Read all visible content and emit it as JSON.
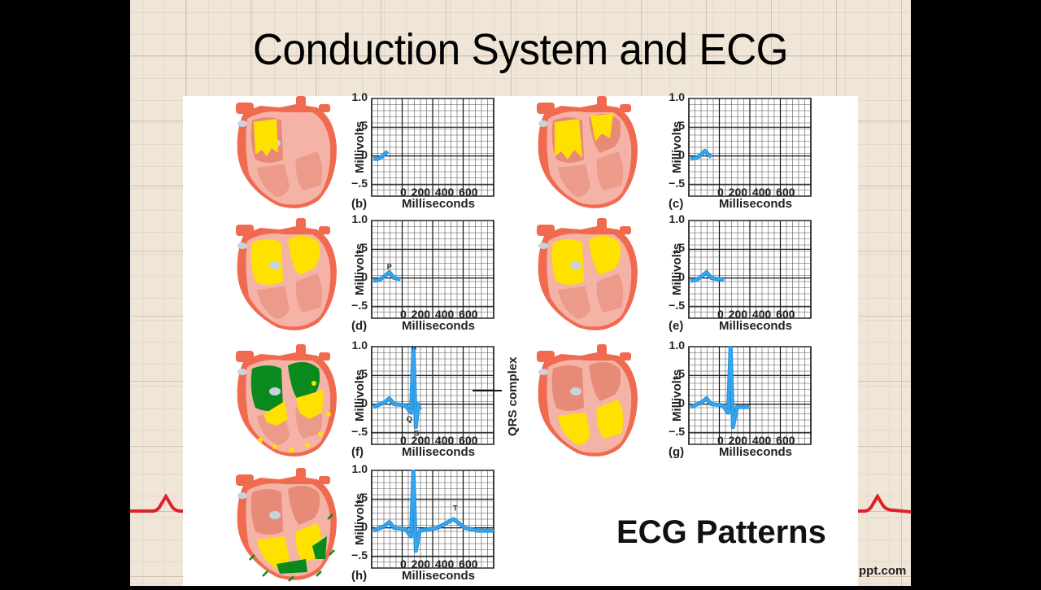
{
  "slide": {
    "title": "Conduction System and ECG",
    "caption": "ECG Patterns",
    "watermark": "ppt.com",
    "qrs_label": "QRS complex",
    "colors": {
      "background_grid": "#efe6d8",
      "ecg_trace": "#1e90e0",
      "decor_ecg": "#e0202a",
      "depolarized_yellow": "#ffe100",
      "repolarized_green": "#0a8a1e",
      "heart_outer": "#f06a50",
      "heart_inner": "#f4b3a6"
    }
  },
  "axes": {
    "ylabel": "Millivolts",
    "xlabel": "Milliseconds",
    "yticks": [
      "1.0",
      ".5",
      "0",
      "−.5"
    ],
    "xticks": "0  200 400 600"
  },
  "panels": [
    {
      "id": "b",
      "label": "(b)",
      "peak_labels": []
    },
    {
      "id": "c",
      "label": "(c)",
      "peak_labels": []
    },
    {
      "id": "d",
      "label": "(d)",
      "peak_labels": [
        "P"
      ]
    },
    {
      "id": "e",
      "label": "(e)",
      "peak_labels": []
    },
    {
      "id": "f",
      "label": "(f)",
      "peak_labels": [
        "R",
        "Q",
        "S"
      ]
    },
    {
      "id": "g",
      "label": "(g)",
      "peak_labels": []
    },
    {
      "id": "h",
      "label": "(h)",
      "peak_labels": [
        "T"
      ]
    }
  ],
  "chart_data": [
    {
      "type": "line",
      "panel": "(b)",
      "xlabel": "Milliseconds",
      "ylabel": "Millivolts",
      "xlim": [
        -60,
        700
      ],
      "ylim": [
        -0.7,
        1.0
      ],
      "x": [
        -50,
        -20,
        0,
        20,
        40
      ],
      "y": [
        -0.05,
        -0.05,
        -0.02,
        0.03,
        0.08
      ]
    },
    {
      "type": "line",
      "panel": "(c)",
      "xlabel": "Milliseconds",
      "ylabel": "Millivolts",
      "xlim": [
        -60,
        700
      ],
      "ylim": [
        -0.7,
        1.0
      ],
      "x": [
        -50,
        -10,
        20,
        40,
        60,
        80
      ],
      "y": [
        -0.05,
        -0.03,
        0.03,
        0.09,
        0.03,
        -0.02
      ]
    },
    {
      "type": "line",
      "panel": "(d)",
      "xlabel": "Milliseconds",
      "ylabel": "Millivolts",
      "xlim": [
        -60,
        700
      ],
      "ylim": [
        -0.7,
        1.0
      ],
      "x": [
        -50,
        -10,
        20,
        50,
        80,
        120
      ],
      "y": [
        -0.05,
        -0.03,
        0.03,
        0.1,
        0.0,
        -0.02
      ],
      "annotations": [
        {
          "text": "P",
          "x": 50,
          "y": 0.15
        }
      ]
    },
    {
      "type": "line",
      "panel": "(e)",
      "xlabel": "Milliseconds",
      "ylabel": "Millivolts",
      "xlim": [
        -60,
        700
      ],
      "ylim": [
        -0.7,
        1.0
      ],
      "x": [
        -50,
        -10,
        20,
        50,
        80,
        120,
        160
      ],
      "y": [
        -0.05,
        -0.03,
        0.03,
        0.1,
        0.0,
        -0.02,
        -0.02
      ]
    },
    {
      "type": "line",
      "panel": "(f)",
      "xlabel": "Milliseconds",
      "ylabel": "Millivolts",
      "xlim": [
        -60,
        700
      ],
      "ylim": [
        -0.7,
        1.0
      ],
      "x": [
        -50,
        20,
        50,
        80,
        150,
        185,
        200,
        215,
        230,
        240
      ],
      "y": [
        -0.05,
        0.03,
        0.1,
        0.0,
        -0.02,
        -0.15,
        1.0,
        -0.4,
        0.0,
        -0.1
      ],
      "annotations": [
        {
          "text": "R",
          "x": 205,
          "y": 0.95
        },
        {
          "text": "Q",
          "x": 175,
          "y": -0.3
        },
        {
          "text": "S",
          "x": 220,
          "y": -0.55
        },
        {
          "text": "QRS complex",
          "x": 600,
          "y": 0.15
        }
      ]
    },
    {
      "type": "line",
      "panel": "(g)",
      "xlabel": "Milliseconds",
      "ylabel": "Millivolts",
      "xlim": [
        -60,
        700
      ],
      "ylim": [
        -0.7,
        1.0
      ],
      "x": [
        -50,
        20,
        50,
        80,
        150,
        185,
        200,
        215,
        240,
        320
      ],
      "y": [
        -0.05,
        0.03,
        0.1,
        0.0,
        -0.02,
        -0.15,
        1.0,
        -0.4,
        -0.05,
        -0.05
      ]
    },
    {
      "type": "line",
      "panel": "(h)",
      "xlabel": "Milliseconds",
      "ylabel": "Millivolts",
      "xlim": [
        -60,
        700
      ],
      "ylim": [
        -0.7,
        1.0
      ],
      "x": [
        -50,
        20,
        50,
        80,
        150,
        185,
        200,
        215,
        240,
        350,
        450,
        520,
        600,
        700
      ],
      "y": [
        -0.05,
        0.03,
        0.1,
        0.0,
        -0.02,
        -0.15,
        1.0,
        -0.4,
        -0.05,
        0.0,
        0.15,
        0.0,
        -0.05,
        -0.05
      ],
      "annotations": [
        {
          "text": "T",
          "x": 460,
          "y": 0.3
        }
      ]
    }
  ]
}
